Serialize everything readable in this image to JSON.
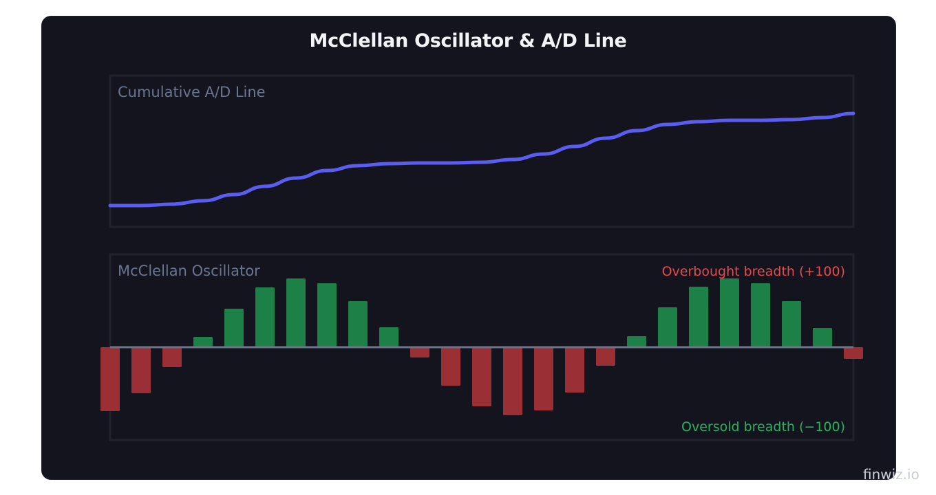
{
  "chart_data": [
    {
      "type": "line",
      "title": "Cumulative A/D Line",
      "x": [
        1,
        2,
        3,
        4,
        5,
        6,
        7,
        8,
        9,
        10,
        11,
        12,
        13,
        14,
        15,
        16,
        17,
        18,
        19,
        20,
        21,
        22,
        23,
        24,
        25
      ],
      "values": [
        31,
        31,
        33,
        38,
        47,
        59,
        71,
        82,
        89,
        92,
        93,
        93,
        94,
        98,
        106,
        117,
        129,
        140,
        149,
        153,
        155,
        155,
        156,
        159,
        165
      ],
      "ylim": [
        0,
        220
      ],
      "grid": false,
      "color": "#5b5cf0"
    },
    {
      "type": "bar",
      "title": "McClellan Oscillator",
      "x": [
        1,
        2,
        3,
        4,
        5,
        6,
        7,
        8,
        9,
        10,
        11,
        12,
        13,
        14,
        15,
        16,
        17,
        18,
        19,
        20,
        21,
        22,
        23,
        24,
        25
      ],
      "values": [
        -93,
        -67,
        -29,
        15,
        56,
        87,
        100,
        93,
        67,
        29,
        -15,
        -56,
        -86,
        -99,
        -92,
        -66,
        -27,
        16,
        58,
        88,
        100,
        93,
        67,
        28,
        -17
      ],
      "ylim": [
        -135,
        135
      ],
      "grid": false,
      "positive_color": "#1d8046",
      "negative_color": "#9a3035",
      "zero_line_color": "#6b7388",
      "annotations": [
        {
          "text": "Overbought breadth (+100)",
          "color": "#e84a4a"
        },
        {
          "text": "Oversold breadth (−100)",
          "color": "#26b35c"
        }
      ]
    }
  ],
  "header": {
    "title": "McClellan Oscillator & A/D Line"
  },
  "watermark": "finwiz.io"
}
